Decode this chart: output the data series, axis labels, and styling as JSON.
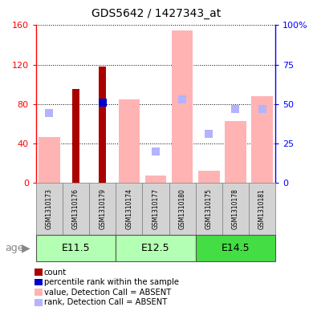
{
  "title": "GDS5642 / 1427343_at",
  "samples": [
    "GSM1310173",
    "GSM1310176",
    "GSM1310179",
    "GSM1310174",
    "GSM1310177",
    "GSM1310180",
    "GSM1310175",
    "GSM1310178",
    "GSM1310181"
  ],
  "age_groups": [
    {
      "label": "E11.5",
      "start": 0,
      "end": 3
    },
    {
      "label": "E12.5",
      "start": 3,
      "end": 6
    },
    {
      "label": "E14.5",
      "start": 6,
      "end": 9
    }
  ],
  "count_values": [
    0,
    95,
    118,
    0,
    0,
    0,
    0,
    0,
    0
  ],
  "percentile_values": [
    0,
    0,
    51,
    0,
    0,
    0,
    0,
    0,
    0
  ],
  "absent_value_values": [
    46,
    0,
    0,
    85,
    7,
    155,
    12,
    63,
    88
  ],
  "absent_rank_values": [
    44,
    0,
    0,
    0,
    20,
    53,
    31,
    47,
    47
  ],
  "ylim_left": [
    0,
    160
  ],
  "ylim_right": [
    0,
    100
  ],
  "yticks_left": [
    0,
    40,
    80,
    120,
    160
  ],
  "yticks_right": [
    0,
    25,
    50,
    75,
    100
  ],
  "yticklabels_right": [
    "0",
    "25",
    "50",
    "75",
    "100%"
  ],
  "color_count": "#aa0000",
  "color_percentile": "#0000cc",
  "color_absent_value": "#ffb3b3",
  "color_absent_rank": "#b3b3ff",
  "color_age_light": "#b3ffb3",
  "color_age_dark": "#44dd44",
  "color_sample_bg": "#d3d3d3",
  "bar_width": 0.5
}
